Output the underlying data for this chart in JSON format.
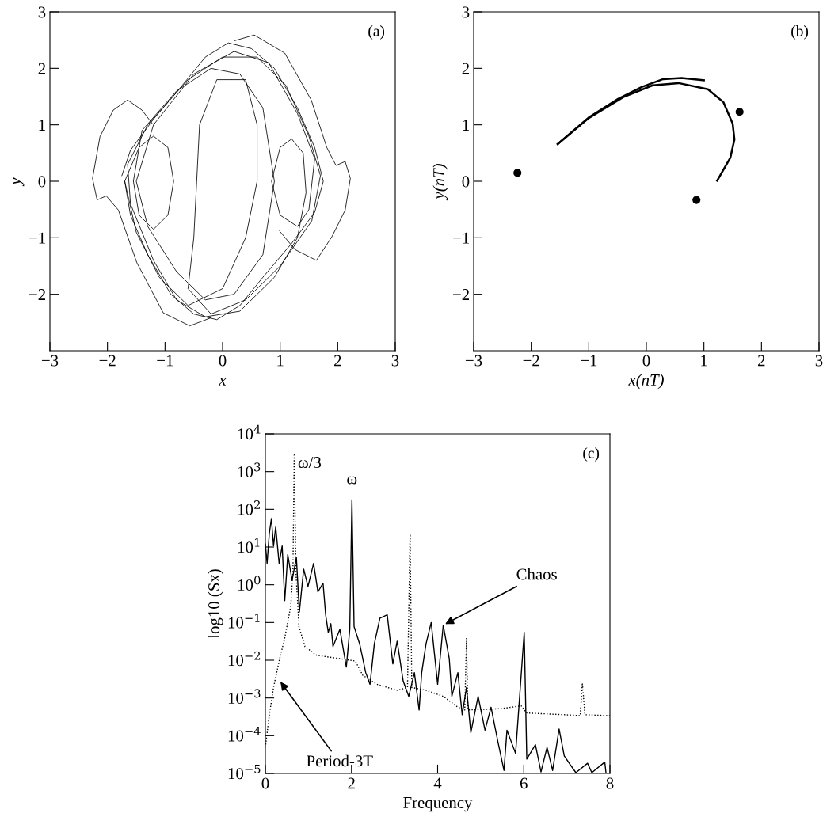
{
  "chart_data": [
    {
      "type": "line",
      "xlabel": "x",
      "ylabel": "y",
      "xlim": [
        -3,
        3
      ],
      "ylim": [
        -3,
        3
      ],
      "xticks": [
        -3,
        -2,
        -1,
        0,
        1,
        2,
        3
      ],
      "yticks": [
        -2,
        -1,
        0,
        1,
        2,
        3
      ],
      "grid": false,
      "marker": "none",
      "annotations": [
        "(a)"
      ],
      "series": [
        {
          "color": "#000000",
          "line_style": "solid",
          "x": [
            -1.22,
            -1.4,
            -1.65,
            -1.9,
            -2.13,
            -2.26,
            -2.18,
            -2.02,
            -1.81,
            -1.49,
            -1.03,
            -0.57,
            -0.21
          ],
          "values": [
            1.02,
            1.26,
            1.44,
            1.26,
            0.79,
            0.05,
            -0.33,
            -0.26,
            -0.51,
            -1.44,
            -2.33,
            -2.56,
            -2.42
          ]
        },
        {
          "color": "#000000",
          "line_style": "solid",
          "x": [
            0.21,
            0.55,
            1.08,
            1.54,
            1.81,
            1.97,
            2.13,
            2.22,
            2.13,
            1.9,
            1.63,
            1.26,
            0.99
          ],
          "values": [
            2.49,
            2.59,
            2.27,
            1.44,
            0.6,
            0.28,
            0.35,
            0.05,
            -0.51,
            -0.98,
            -1.4,
            -1.21,
            -0.88
          ]
        },
        {
          "color": "#000000",
          "line_style": "solid",
          "x": [
            -1.75,
            -1.6,
            -1.2,
            -0.7,
            -0.3,
            0.1,
            0.5,
            0.9,
            1.3,
            1.6,
            1.75,
            1.6,
            1.2,
            0.7,
            0.3,
            -0.1,
            -0.5,
            -0.9,
            -1.3,
            -1.6,
            -1.7,
            -1.45,
            -1.2,
            -0.95,
            -0.85,
            -0.95,
            -1.2,
            -1.45,
            -1.55,
            -1.4,
            -0.8,
            -0.2,
            0.3,
            0.7,
            0.9,
            0.7,
            0.2,
            -0.3,
            -0.8,
            -1.3,
            -1.5,
            -1.2,
            -0.5,
            0.2,
            0.8,
            1.3,
            1.6,
            1.5,
            1.3,
            1.0,
            0.85,
            1.0,
            1.2,
            1.4,
            1.45,
            1.3,
            0.9,
            0.3,
            -0.3,
            -0.8,
            -1.2,
            -1.6,
            -1.65,
            -1.3,
            -0.6,
            0.0,
            0.6,
            1.1,
            1.5,
            1.7,
            1.55,
            1.0,
            0.4,
            -0.2,
            -0.6,
            -0.5,
            -0.45,
            -0.4,
            -0.1,
            0.4,
            0.6,
            0.6,
            0.4,
            0.0,
            -0.6,
            -1.1,
            -1.5,
            -1.7
          ],
          "values": [
            0.1,
            0.55,
            1.1,
            1.7,
            2.2,
            2.45,
            2.35,
            2.0,
            1.3,
            0.6,
            0.0,
            -0.55,
            -1.1,
            -1.7,
            -2.2,
            -2.45,
            -2.35,
            -2.0,
            -1.3,
            -0.6,
            0.0,
            0.6,
            0.8,
            0.6,
            0.0,
            -0.6,
            -0.85,
            -0.6,
            0.0,
            0.9,
            1.6,
            2.0,
            1.9,
            1.3,
            0.0,
            -1.3,
            -2.0,
            -2.1,
            -1.6,
            -0.8,
            0.0,
            1.0,
            1.9,
            2.3,
            2.1,
            1.2,
            0.4,
            -0.5,
            -0.8,
            -0.6,
            0.0,
            0.6,
            0.75,
            0.5,
            -0.2,
            -1.0,
            -1.7,
            -2.3,
            -2.4,
            -2.1,
            -1.4,
            -0.4,
            0.3,
            1.0,
            1.8,
            2.2,
            2.2,
            1.7,
            0.8,
            0.1,
            -0.7,
            -1.5,
            -2.1,
            -2.35,
            -1.9,
            -1.0,
            0.0,
            1.0,
            1.8,
            1.8,
            1.0,
            0.0,
            -1.0,
            -1.9,
            -2.2,
            -1.7,
            -0.9,
            0.0
          ]
        }
      ]
    },
    {
      "type": "line",
      "xlabel": "x(nT)",
      "ylabel": "y(nT)",
      "xlim": [
        -3,
        3
      ],
      "ylim": [
        -3,
        3
      ],
      "xticks": [
        -3,
        -2,
        -1,
        0,
        1,
        2,
        3
      ],
      "yticks": [
        -2,
        -1,
        0,
        1,
        2,
        3
      ],
      "grid": false,
      "annotations": [
        "(b)"
      ],
      "series": [
        {
          "color": "#000000",
          "line_style": "solid",
          "marker": "none",
          "x": [
            -1.54,
            -1.0,
            -0.4,
            0.11,
            0.56,
            1.07,
            1.34,
            1.5,
            1.53,
            1.46,
            1.23
          ],
          "values": [
            0.66,
            1.12,
            1.49,
            1.7,
            1.74,
            1.63,
            1.4,
            1.02,
            0.74,
            0.42,
            0.01
          ]
        },
        {
          "color": "#000000",
          "line_style": "solid",
          "marker": "none",
          "x": [
            -1.54,
            -1.0,
            -0.49,
            -0.08,
            0.29,
            0.61,
            1.0
          ],
          "values": [
            0.66,
            1.13,
            1.46,
            1.67,
            1.81,
            1.83,
            1.79
          ]
        },
        {
          "type": "scatter",
          "color": "#000000",
          "marker": "circle",
          "x": [
            -2.24,
            1.62,
            0.87
          ],
          "values": [
            0.15,
            1.23,
            -0.33
          ]
        }
      ]
    },
    {
      "type": "line",
      "xlabel": "Frequency",
      "ylabel": "log10 (Sx)",
      "log": "y",
      "xlim": [
        0,
        8
      ],
      "ylim": [
        1e-05,
        10000
      ],
      "xticks": [
        0,
        2,
        4,
        6,
        8
      ],
      "grid": false,
      "marker": "none",
      "yticks": [
        {
          "value": 1e-05,
          "label": "10$^{−5}$"
        },
        {
          "value": 0.0001,
          "label": "10$^{−4}$"
        },
        {
          "value": 0.001,
          "label": "10$^{−3}$"
        },
        {
          "value": 0.01,
          "label": "10$^{−2}$"
        },
        {
          "value": 0.1,
          "label": "10$^{−1}$"
        },
        {
          "value": 1,
          "label": "10$^{0}$"
        },
        {
          "value": 10,
          "label": "10$^{1}$"
        },
        {
          "value": 100,
          "label": "10$^{2}$"
        },
        {
          "value": 1000,
          "label": "10$^{3}$"
        },
        {
          "value": 10000,
          "label": "10$^{4}$"
        }
      ],
      "annotations": [
        "(c)",
        {
          "text": "ω/3",
          "x": 0.67,
          "y": 2750
        },
        {
          "text": "ω",
          "x": 2.01,
          "y": 180
        },
        {
          "text": "Chaos",
          "x": 4.13,
          "y": 0.085
        },
        {
          "text": "Period-3T",
          "x": 0.32,
          "y": 0.003
        }
      ],
      "series": [
        {
          "color": "#000000",
          "line_style": "dotted",
          "x": [
            0,
            0.09,
            0.19,
            0.32,
            0.45,
            0.59,
            0.64,
            0.67,
            0.71,
            0.78,
            0.92,
            1.19,
            1.73,
            2.09,
            2.26,
            2.59,
            3.06,
            3.3,
            3.36,
            3.4,
            3.73,
            4.13,
            4.47,
            4.63,
            4.67,
            4.7,
            5.47,
            5.94,
            6.07,
            6.94,
            7.31,
            7.36,
            7.42,
            8.0
          ],
          "values": [
            4.9e-05,
            0.00034,
            0.0019,
            0.0095,
            0.039,
            0.27,
            2.2,
            2750,
            2.2,
            0.078,
            0.023,
            0.0135,
            0.011,
            0.0095,
            0.004,
            0.0023,
            0.0016,
            0.0019,
            22,
            0.0019,
            0.0016,
            0.0011,
            0.00057,
            0.00048,
            0.039,
            0.00048,
            0.00052,
            0.00062,
            0.0004,
            0.00036,
            0.00034,
            0.0025,
            0.00036,
            0.00034
          ]
        },
        {
          "color": "#000000",
          "line_style": "solid",
          "x": [
            0,
            0.04,
            0.09,
            0.14,
            0.19,
            0.24,
            0.32,
            0.39,
            0.45,
            0.52,
            0.62,
            0.72,
            0.79,
            0.89,
            0.99,
            1.12,
            1.22,
            1.34,
            1.4,
            1.46,
            1.52,
            1.57,
            1.73,
            1.88,
            1.96,
            2.01,
            2.06,
            2.19,
            2.33,
            2.43,
            2.53,
            2.66,
            2.83,
            2.96,
            3.06,
            3.2,
            3.33,
            3.46,
            3.57,
            3.63,
            3.73,
            3.85,
            4.0,
            4.13,
            4.27,
            4.33,
            4.47,
            4.57,
            4.67,
            4.77,
            4.94,
            5.1,
            5.24,
            5.4,
            5.54,
            5.61,
            5.81,
            6.01,
            6.07,
            6.27,
            6.4,
            6.54,
            6.67,
            6.82,
            6.94,
            7.08,
            7.21,
            7.48,
            7.58,
            7.88,
            7.91
          ],
          "values": [
            12,
            3.7,
            22,
            57,
            10.7,
            34,
            3.7,
            10.7,
            0.38,
            6.3,
            1.3,
            5.3,
            0.19,
            2.6,
            0.9,
            3.7,
            0.65,
            1.1,
            0.16,
            0.055,
            0.093,
            0.023,
            0.066,
            0.0066,
            0.066,
            180,
            0.078,
            0.027,
            0.0047,
            0.0023,
            0.027,
            0.13,
            0.16,
            0.008,
            0.032,
            0.0028,
            0.0011,
            0.0047,
            0.00048,
            0.0047,
            0.027,
            0.1,
            0.0023,
            0.085,
            0.011,
            0.0011,
            0.0047,
            0.00036,
            0.0019,
            0.00012,
            0.0011,
            0.00014,
            0.00057,
            6.9e-05,
            1.2e-05,
            0.00014,
            3.4e-05,
            0.055,
            2.4e-05,
            5.8e-05,
            1.1e-05,
            4.9e-05,
            1.2e-05,
            0.00015,
            2.9e-05,
            1.7e-05,
            1.05e-05,
            1.86e-05,
            1.05e-05,
            2e-05,
            1e-05
          ]
        }
      ]
    }
  ]
}
